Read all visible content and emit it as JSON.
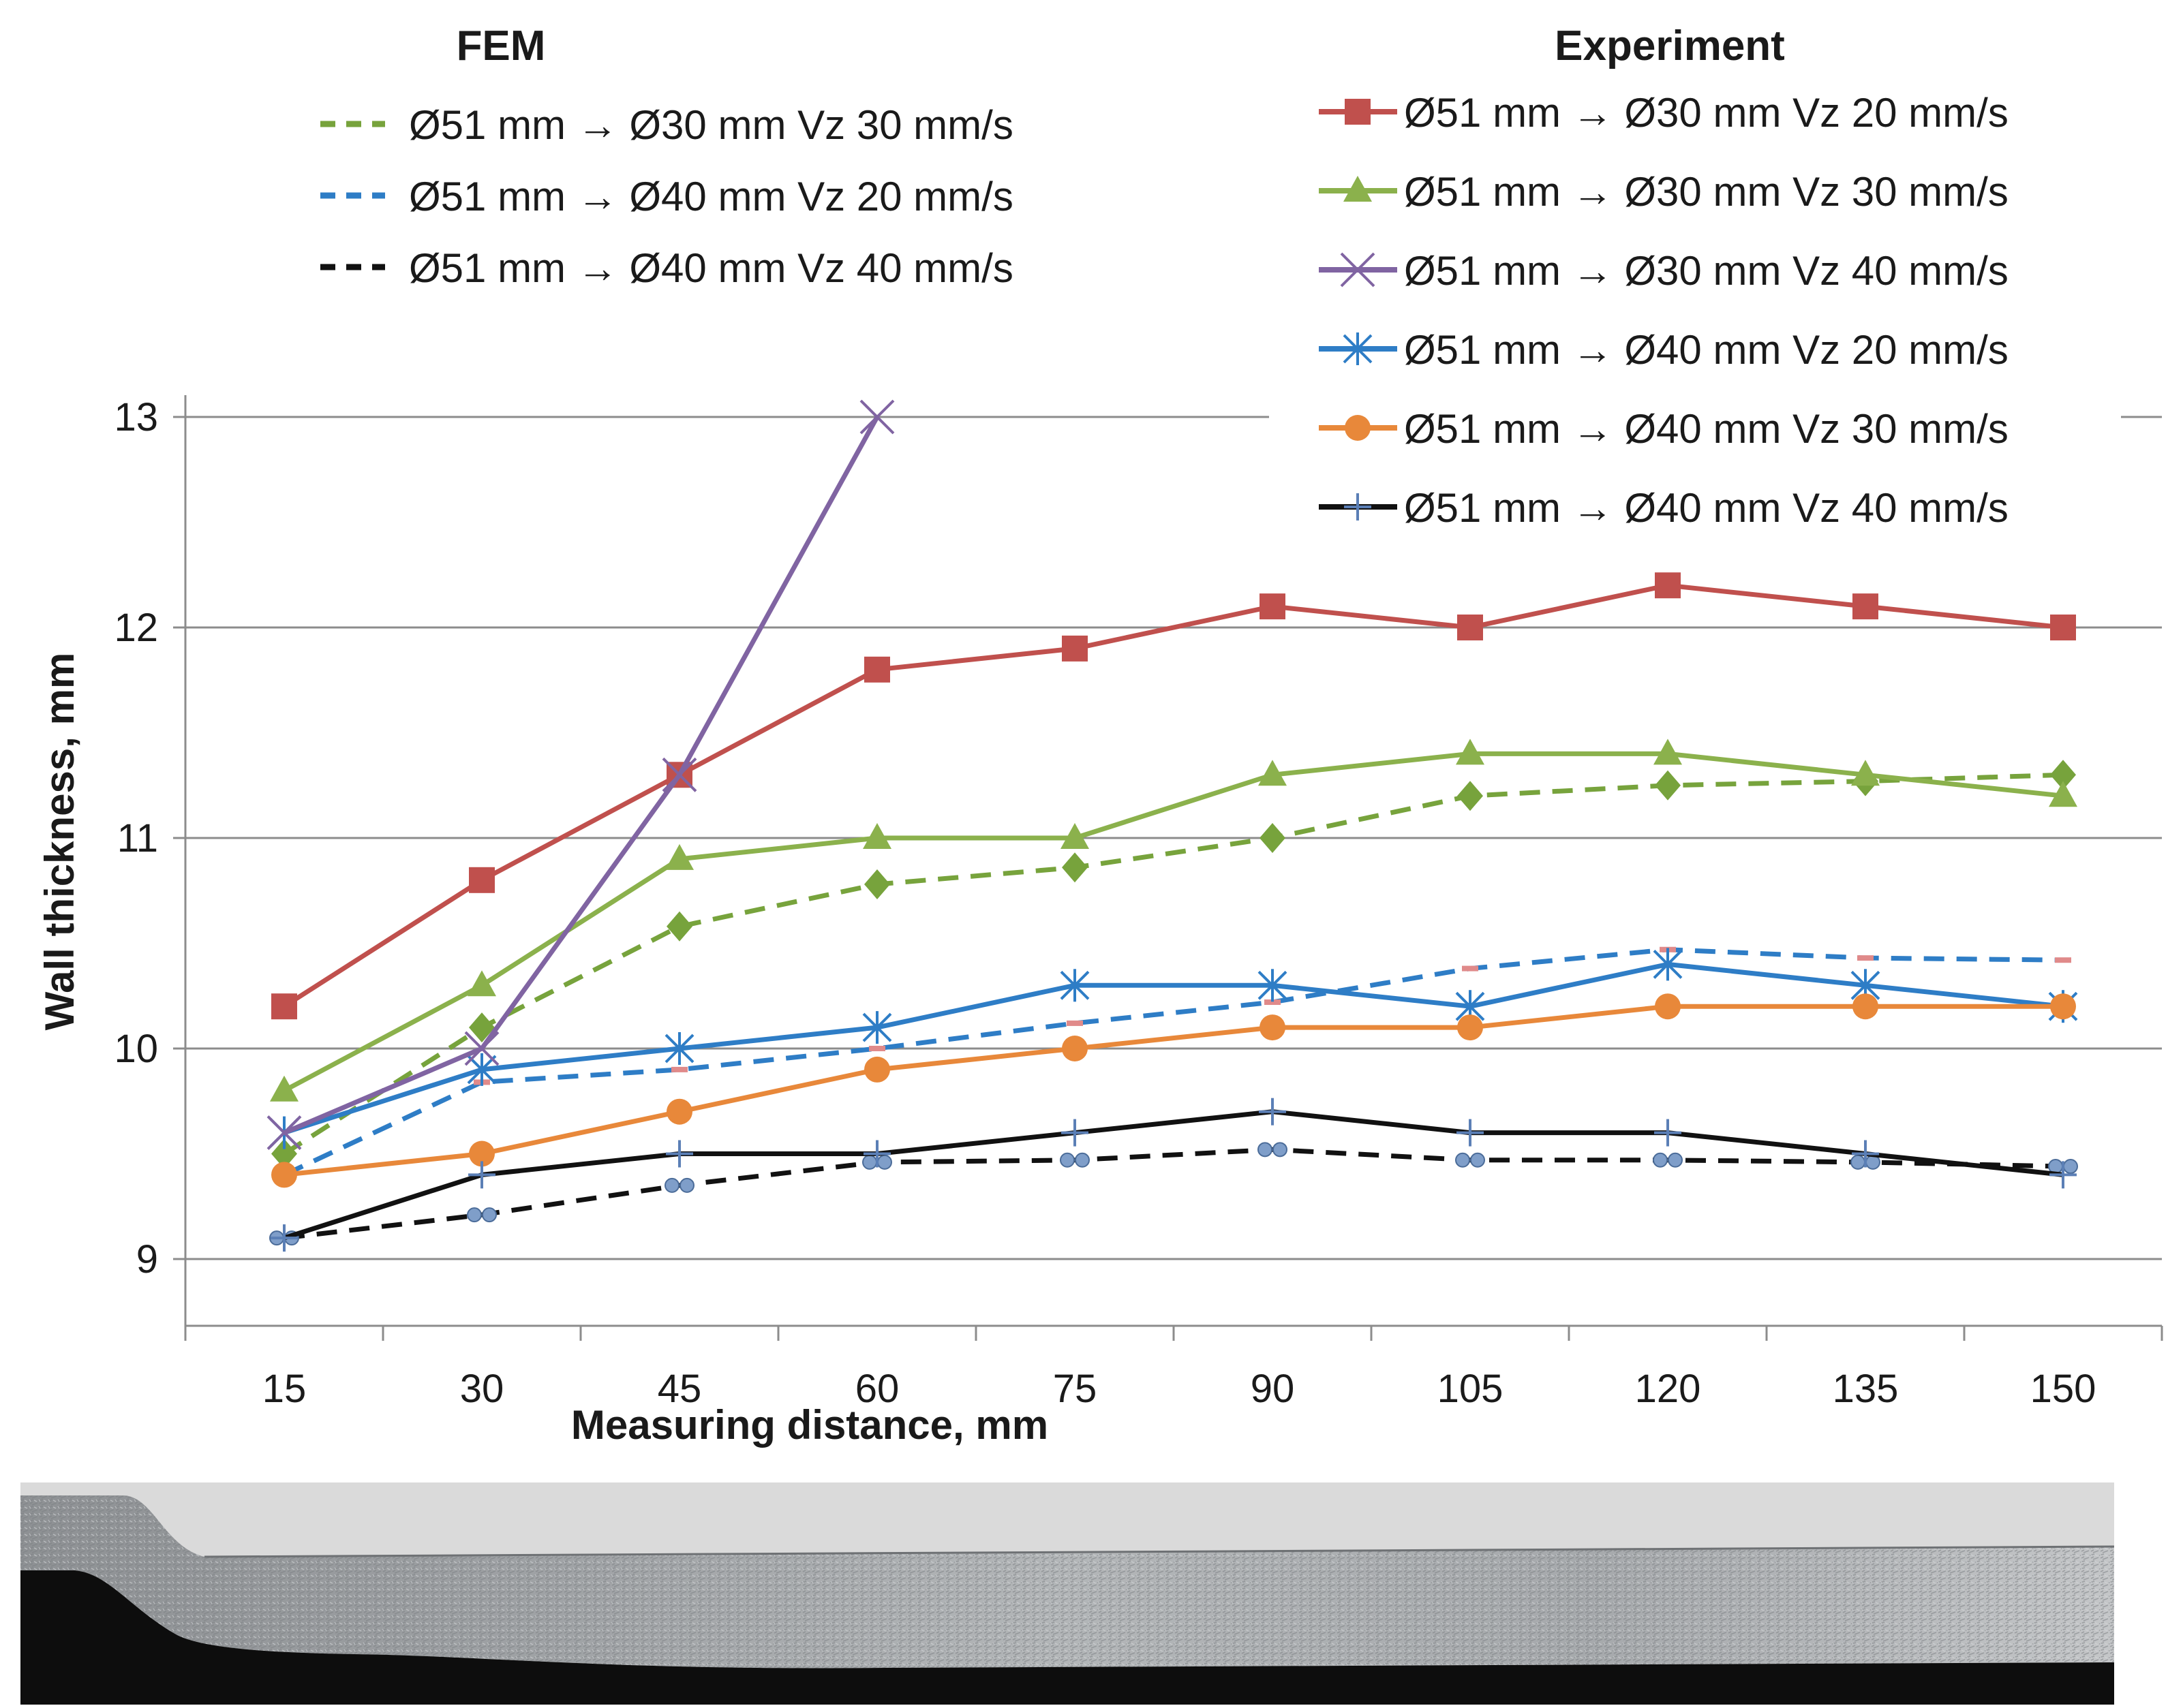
{
  "chart_data": {
    "type": "line",
    "xlabel": "Measuring distance, mm",
    "ylabel": "Wall thickness, mm",
    "ylim": [
      9,
      13
    ],
    "yticks": [
      9,
      10,
      11,
      12,
      13
    ],
    "grid": "horizontal",
    "legend_groups": [
      {
        "title": "FEM",
        "placement": "top-left"
      },
      {
        "title": "Experiment",
        "placement": "top-right"
      }
    ],
    "categories": [
      "15",
      "30",
      "45",
      "60",
      "75",
      "90",
      "105",
      "120",
      "135",
      "150"
    ],
    "series": [
      {
        "name": "Ø51 mm → Ø30 mm Vz 20 mm/s",
        "group": "Experiment",
        "color": "#C0504D",
        "style": "solid",
        "marker": "square",
        "values": [
          10.2,
          10.8,
          11.3,
          11.8,
          11.9,
          12.1,
          12.0,
          12.2,
          12.1,
          12.0
        ]
      },
      {
        "name": "Ø51 mm → Ø30 mm Vz 30 mm/s",
        "group": "Experiment",
        "color": "#8BB14C",
        "style": "solid",
        "marker": "triangle",
        "values": [
          9.8,
          10.3,
          10.9,
          11.0,
          11.0,
          11.3,
          11.4,
          11.4,
          11.3,
          11.2
        ]
      },
      {
        "name": "Ø51 mm → Ø30 mm Vz 40 mm/s",
        "group": "Experiment",
        "color": "#8064A2",
        "style": "solid",
        "marker": "x",
        "values": [
          9.6,
          10.0,
          11.3,
          13.0,
          null,
          null,
          null,
          null,
          null,
          null
        ]
      },
      {
        "name": "Ø51 mm → Ø40 mm Vz 20 mm/s",
        "group": "Experiment",
        "color": "#2E7DC6",
        "style": "solid",
        "marker": "star",
        "values": [
          9.6,
          9.9,
          10.0,
          10.1,
          10.3,
          10.3,
          10.2,
          10.4,
          10.3,
          10.2
        ]
      },
      {
        "name": "Ø51 mm → Ø40 mm Vz 30 mm/s",
        "group": "Experiment",
        "color": "#E8883A",
        "style": "solid",
        "marker": "circle",
        "values": [
          9.4,
          9.5,
          9.7,
          9.9,
          10.0,
          10.1,
          10.1,
          10.2,
          10.2,
          10.2
        ]
      },
      {
        "name": "Ø51 mm → Ø40 mm Vz 40 mm/s",
        "group": "Experiment",
        "color": "#111111",
        "style": "solid",
        "marker": "plus",
        "values": [
          9.1,
          9.4,
          9.5,
          9.5,
          9.6,
          9.7,
          9.6,
          9.6,
          9.5,
          9.4
        ]
      },
      {
        "name": "Ø51 mm → Ø30 mm Vz 30 mm/s",
        "group": "FEM",
        "color": "#77A33C",
        "style": "dashed",
        "marker": "diamond",
        "values": [
          9.5,
          10.1,
          10.58,
          10.78,
          10.86,
          11.0,
          11.2,
          11.25,
          11.27,
          11.3
        ]
      },
      {
        "name": "Ø51 mm → Ø40 mm Vz 20 mm/s",
        "group": "FEM",
        "color": "#2E7DC6",
        "style": "dashed",
        "marker": "dash",
        "values": [
          9.4,
          9.84,
          9.9,
          10.0,
          10.12,
          10.22,
          10.38,
          10.47,
          10.43,
          10.42
        ]
      },
      {
        "name": "Ø51 mm → Ø40 mm Vz 40 mm/s",
        "group": "FEM",
        "color": "#111111",
        "style": "dashed",
        "marker": "dots",
        "values": [
          9.1,
          9.21,
          9.35,
          9.46,
          9.47,
          9.52,
          9.47,
          9.47,
          9.46,
          9.44
        ]
      }
    ]
  },
  "colors": {
    "grid": "#8C8C8C",
    "axis_text": "#1A1A1A"
  },
  "photo": {
    "description_icon": "tube-cross-section-photo"
  }
}
